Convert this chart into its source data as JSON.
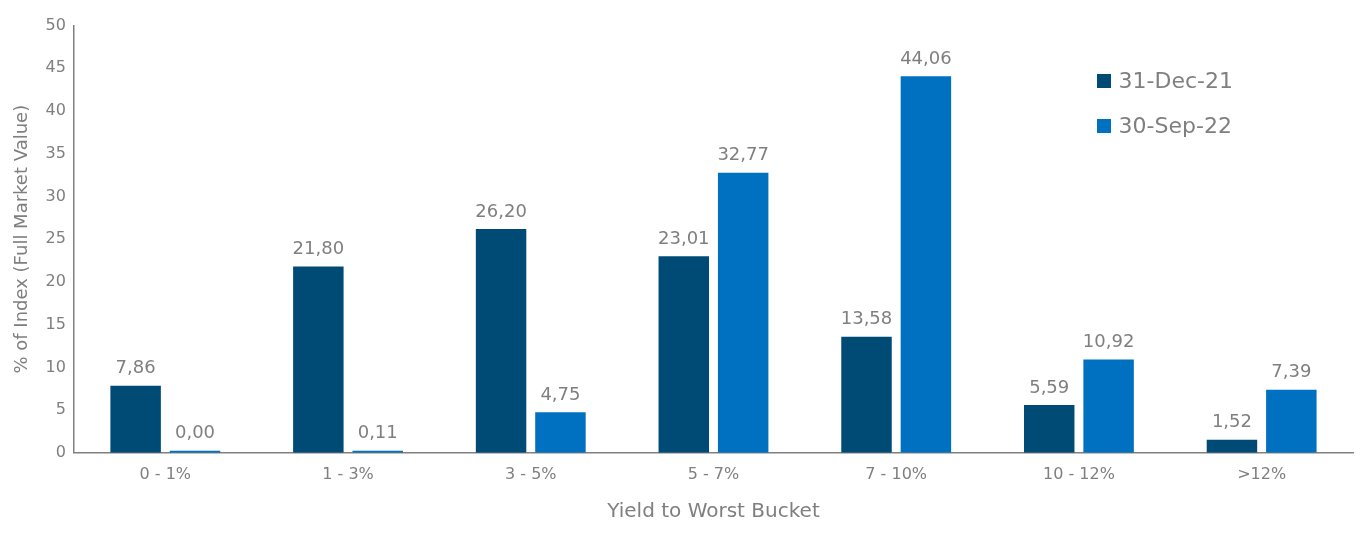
{
  "chart_data": {
    "type": "bar",
    "xlabel": "Yield to Worst Bucket",
    "ylabel": "% of Index (Full Market Value)",
    "categories": [
      "0 - 1%",
      "1 - 3%",
      "3 - 5%",
      "5 - 7%",
      "7 - 10%",
      "10 - 12%",
      ">12%"
    ],
    "series": [
      {
        "name": "31-Dec-21",
        "color": "#004b76",
        "values": [
          7.86,
          21.8,
          26.2,
          23.01,
          13.58,
          5.59,
          1.52
        ],
        "value_labels": [
          "7,86",
          "21,80",
          "26,20",
          "23,01",
          "13,58",
          "5,59",
          "1,52"
        ]
      },
      {
        "name": "30-Sep-22",
        "color": "#0070c0",
        "values": [
          0,
          0.11,
          4.75,
          32.77,
          44.06,
          10.92,
          7.39
        ],
        "value_labels": [
          "0,00",
          "0,11",
          "4,75",
          "32,77",
          "44,06",
          "10,92",
          "7,39"
        ]
      }
    ],
    "ylim": [
      0,
      50
    ],
    "yticks": [
      0,
      5,
      10,
      15,
      20,
      25,
      30,
      35,
      40,
      45,
      50
    ],
    "grid": false,
    "legend": "top right"
  }
}
